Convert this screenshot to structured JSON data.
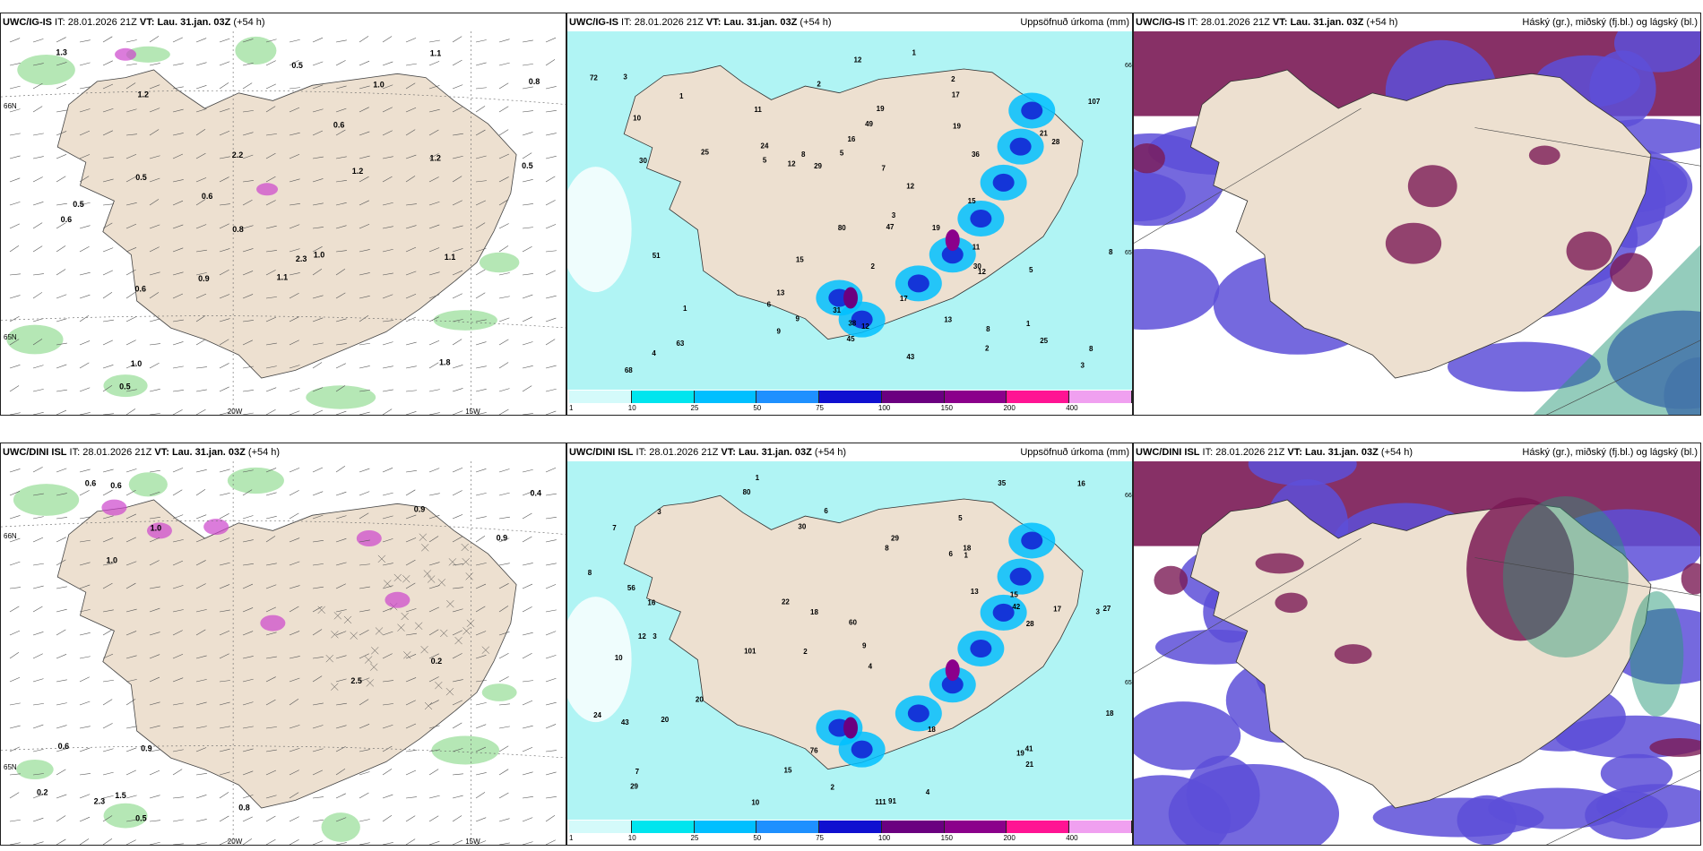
{
  "panels": [
    {
      "id": "p1",
      "model": "UWC/IG-IS",
      "it": "28.01.2026 21Z",
      "vt_label": "VT:",
      "vt": "Lau. 31.jan. 03Z",
      "lead": "(+54 h)",
      "right": "",
      "labels": [
        "1.0",
        "0.5",
        "1.2",
        "1.3",
        "0.6",
        "0.5",
        "1.0",
        "0.5",
        "1.8",
        "0.8",
        "0.5",
        "1.2",
        "1.0",
        "1.1",
        "1.1",
        "1.1",
        "0.9",
        "0.6",
        "0.5",
        "0.6",
        "2.2",
        "0.8",
        "0.6",
        "2.3",
        "1.2"
      ],
      "grid": [
        "20W",
        "15W",
        "66N",
        "65N"
      ]
    },
    {
      "id": "p2",
      "model": "UWC/IG-IS",
      "it": "28.01.2026 21Z",
      "vt_label": "VT:",
      "vt": "Lau. 31.jan. 03Z",
      "lead": "(+54 h)",
      "right": "Uppsöfnuð úrkoma (mm)",
      "labels": [
        "4",
        "5",
        "3",
        "2",
        "2",
        "1",
        "1",
        "2",
        "8",
        "6",
        "3",
        "5",
        "9",
        "12",
        "13",
        "24",
        "30",
        "51",
        "80",
        "107",
        "72",
        "63",
        "45",
        "19",
        "12",
        "17",
        "8",
        "49",
        "28",
        "17",
        "25",
        "15",
        "19",
        "68",
        "47",
        "43",
        "38",
        "36",
        "30",
        "31",
        "25",
        "13",
        "11",
        "9",
        "15",
        "12",
        "16",
        "12",
        "8",
        "8",
        "10",
        "5",
        "3",
        "2",
        "1",
        "1",
        "21",
        "29",
        "12",
        "11",
        "7",
        "19"
      ],
      "grid": [
        "66N",
        "65N"
      ]
    },
    {
      "id": "p3",
      "model": "UWC/IG-IS",
      "it": "28.01.2026 21Z",
      "vt_label": "VT:",
      "vt": "Lau. 31.jan. 03Z",
      "lead": "(+54 h)",
      "right": "Háský (gr.), miðský (fj.bl.) og lágský (bl.)",
      "labels": [],
      "grid": []
    },
    {
      "id": "p4",
      "model": "UWC/DINI ISL",
      "it": "28.01.2026 21Z",
      "vt_label": "VT:",
      "vt": "Lau. 31.jan. 03Z",
      "lead": "(+54 h)",
      "right": "",
      "labels": [
        "0.6",
        "0.6",
        "0.9",
        "0.9",
        "0.2",
        "0.4",
        "0.5",
        "2.5",
        "1.0",
        "0.8",
        "1.0",
        "0.9",
        "0.6",
        "1.5",
        "2.3",
        "0.2"
      ],
      "grid": [
        "20W",
        "15W",
        "66N",
        "65N"
      ]
    },
    {
      "id": "p5",
      "model": "UWC/DINI ISL",
      "it": "28.01.2026 21Z",
      "vt_label": "VT:",
      "vt": "Lau. 31.jan. 03Z",
      "lead": "(+54 h)",
      "right": "Uppsöfnuð úrkoma (mm)",
      "labels": [
        "1",
        "5",
        "3",
        "2",
        "4",
        "3",
        "7",
        "6",
        "10",
        "8",
        "60",
        "29",
        "80",
        "101",
        "111",
        "91",
        "76",
        "35",
        "13",
        "20",
        "16",
        "12",
        "27",
        "17",
        "24",
        "56",
        "18",
        "42",
        "41",
        "43",
        "19",
        "29",
        "20",
        "22",
        "18",
        "18",
        "15",
        "15",
        "16",
        "6",
        "7",
        "10",
        "4",
        "3",
        "2",
        "1",
        "21",
        "18",
        "8",
        "9",
        "30",
        "28"
      ],
      "grid": [
        "66N",
        "65N"
      ]
    },
    {
      "id": "p6",
      "model": "UWC/DINI ISL",
      "it": "28.01.2026 21Z",
      "vt_label": "VT:",
      "vt": "Lau. 31.jan. 03Z",
      "lead": "(+54 h)",
      "right": "Háský (gr.), miðský (fj.bl.) og lágský (bl.)",
      "labels": [],
      "grid": []
    }
  ],
  "colorbar": {
    "ticks": [
      "1",
      "10",
      "25",
      "50",
      "75",
      "100",
      "150",
      "200",
      "400"
    ],
    "colors": [
      "#d4fafa",
      "#00e5ee",
      "#00bfff",
      "#1e90ff",
      "#1010d0",
      "#6b0080",
      "#8b008b",
      "#ff1493",
      "#f0a0f0"
    ]
  },
  "palette": {
    "land": "#ede0d0",
    "precip1": "#b0f4f4",
    "cloud_low": "#5d4fd8",
    "cloud_mid": "#7a1a55",
    "cloud_high": "#2a9a7a",
    "green": "#78d478",
    "purple": "#cc44cc"
  }
}
